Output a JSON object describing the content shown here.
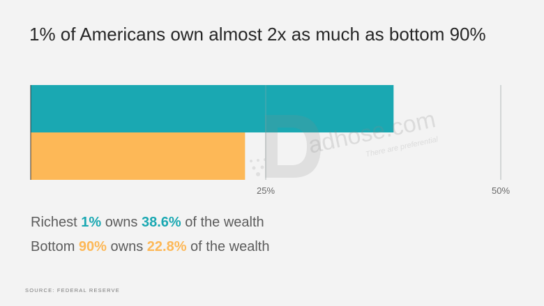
{
  "title": "1% of Americans own almost 2x as much as bottom 90%",
  "chart_data": {
    "type": "bar",
    "orientation": "horizontal",
    "categories": [
      "Richest 1%",
      "Bottom 90%"
    ],
    "values": [
      38.6,
      22.8
    ],
    "colors": [
      "#1aa8b2",
      "#fdb857"
    ],
    "xlim": [
      0,
      50
    ],
    "xticks": [
      25,
      50
    ],
    "xtick_labels": [
      "25%",
      "50%"
    ],
    "grid": true
  },
  "summary": {
    "line1": {
      "prefix": "Richest ",
      "group": "1%",
      "mid": " owns ",
      "value": "38.6%",
      "suffix": " of the wealth"
    },
    "line2": {
      "prefix": "Bottom ",
      "group": "90%",
      "mid": " owns ",
      "value": "22.8%",
      "suffix": " of the wealth"
    }
  },
  "source": "SOURCE: FEDERAL RESERVE",
  "watermark": {
    "text": "adhose.com",
    "tagline": "There are preferential"
  },
  "colors": {
    "teal": "#1aa8b2",
    "orange": "#fdb857",
    "background": "#f3f3f3"
  }
}
